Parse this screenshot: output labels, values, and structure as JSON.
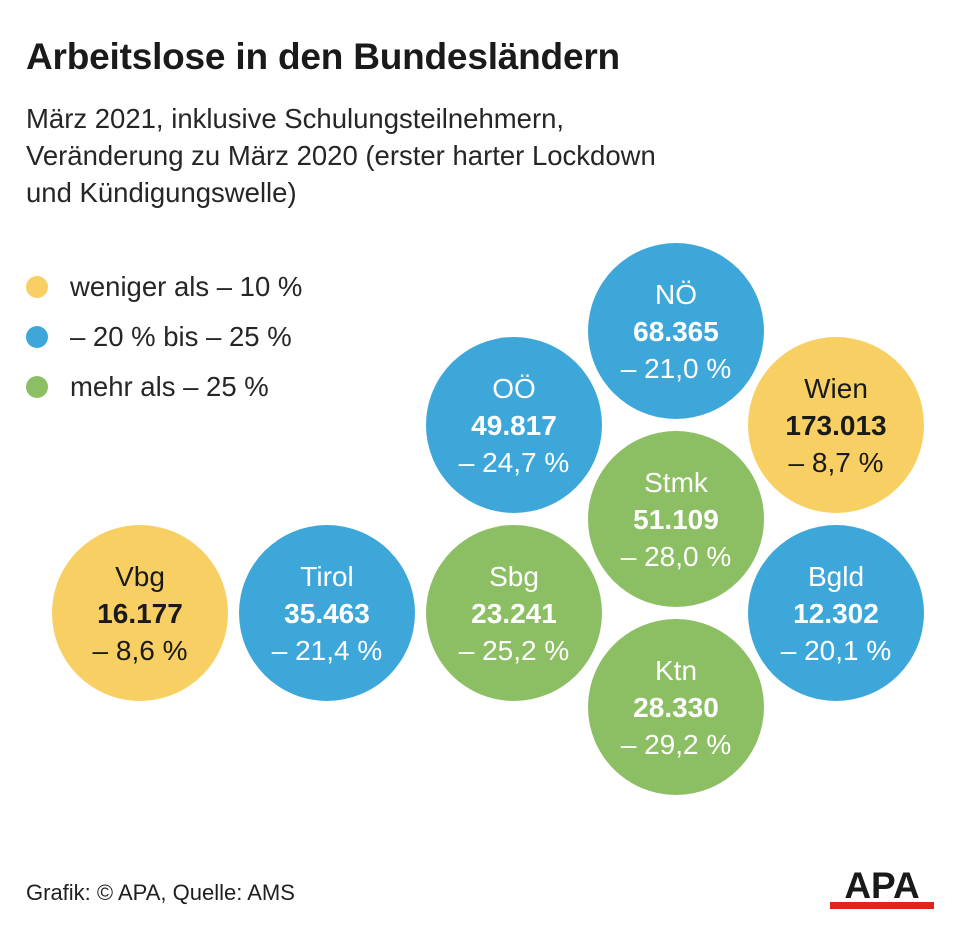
{
  "title": "Arbeitslose in den Bundesländern",
  "subtitle": {
    "line1": "März 2021, inklusive Schulungsteilnehmern,",
    "line2": "Veränderung zu März 2020 (erster harter Lockdown",
    "line3": "und Kündigungswelle)"
  },
  "legend": [
    {
      "label": "weniger als – 10 %",
      "color": "#f8cf62"
    },
    {
      "label": "– 20 % bis – 25 %",
      "color": "#3ea7da"
    },
    {
      "label": "mehr als – 25 %",
      "color": "#8cbe63"
    }
  ],
  "footer": "Grafik: © APA, Quelle: AMS",
  "logo_text": "APA",
  "colors": {
    "yellow": "#f8cf62",
    "blue": "#3ea7da",
    "green": "#8cbe63",
    "logo_red": "#e2231a"
  },
  "chart_data": {
    "type": "bubble-map",
    "title": "Arbeitslose in den Bundesländern",
    "unit": "Arbeitslose",
    "change_unit": "%",
    "states": [
      {
        "name": "Vbg",
        "value": "16.177",
        "change": "– 8,6 %",
        "change_value": -8.6,
        "category": "yellow"
      },
      {
        "name": "Tirol",
        "value": "35.463",
        "change": "– 21,4 %",
        "change_value": -21.4,
        "category": "blue"
      },
      {
        "name": "Sbg",
        "value": "23.241",
        "change": "– 25,2 %",
        "change_value": -25.2,
        "category": "green"
      },
      {
        "name": "OÖ",
        "value": "49.817",
        "change": "– 24,7 %",
        "change_value": -24.7,
        "category": "blue"
      },
      {
        "name": "NÖ",
        "value": "68.365",
        "change": "– 21,0 %",
        "change_value": -21.0,
        "category": "blue"
      },
      {
        "name": "Stmk",
        "value": "51.109",
        "change": "– 28,0 %",
        "change_value": -28.0,
        "category": "green"
      },
      {
        "name": "Ktn",
        "value": "28.330",
        "change": "– 29,2 %",
        "change_value": -29.2,
        "category": "green"
      },
      {
        "name": "Wien",
        "value": "173.013",
        "change": "– 8,7 %",
        "change_value": -8.7,
        "category": "yellow"
      },
      {
        "name": "Bgld",
        "value": "12.302",
        "change": "– 20,1 %",
        "change_value": -20.1,
        "category": "blue"
      }
    ]
  }
}
